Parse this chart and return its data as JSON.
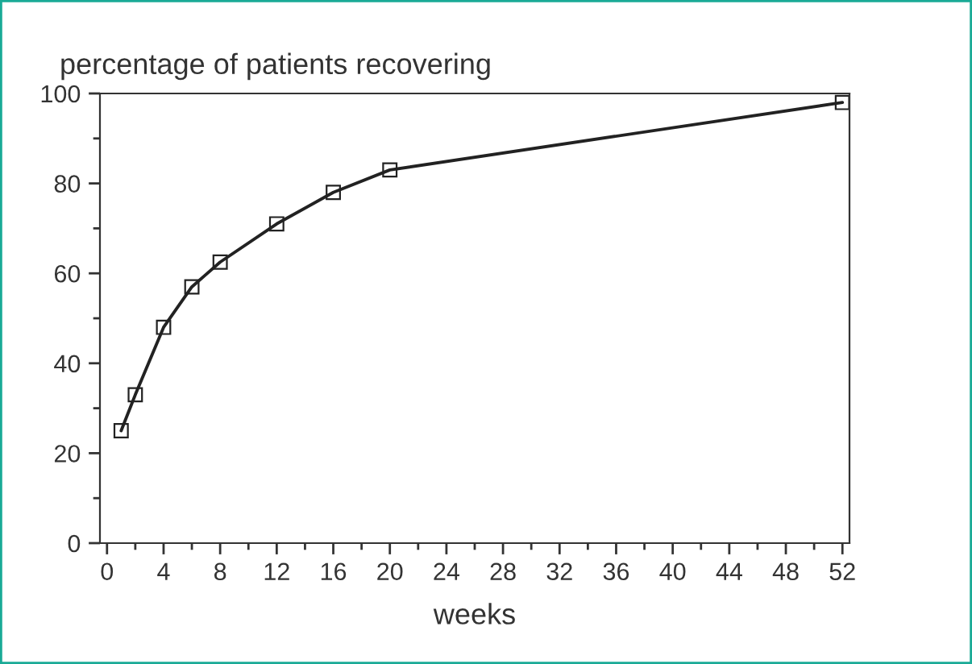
{
  "chart_data": {
    "type": "line",
    "ylabel": "percentage of patients recovering",
    "xlabel": "weeks",
    "x": [
      1,
      2,
      4,
      6,
      8,
      12,
      16,
      20,
      52
    ],
    "series": [
      {
        "color": "#222222",
        "values": [
          25,
          33,
          48,
          57,
          62.5,
          71,
          78,
          83,
          98
        ]
      }
    ],
    "xlim": [
      -0.5,
      52.5
    ],
    "xticks": [
      0,
      4,
      8,
      12,
      16,
      20,
      24,
      28,
      32,
      36,
      40,
      44,
      48,
      52
    ],
    "ylim": [
      0,
      100
    ],
    "yticks": [
      0,
      20,
      40,
      60,
      80,
      100
    ],
    "marker": "square",
    "line_style": "solid",
    "grid": false,
    "legend": false
  }
}
